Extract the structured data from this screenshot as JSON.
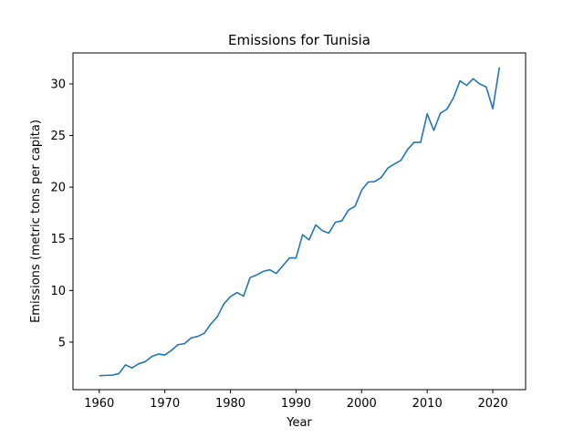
{
  "chart_data": {
    "type": "line",
    "title": "Emissions for Tunisia",
    "xlabel": "Year",
    "ylabel": "Emissions (metric tons per capita)",
    "xlim": [
      1956,
      2025
    ],
    "ylim": [
      0.4,
      33.0
    ],
    "xticks": [
      1960,
      1970,
      1980,
      1990,
      2000,
      2010,
      2020
    ],
    "yticks": [
      5,
      10,
      15,
      20,
      25,
      30
    ],
    "grid": false,
    "series": [
      {
        "name": "Tunisia",
        "color": "#1f77b4",
        "x": [
          1960,
          1961,
          1962,
          1963,
          1964,
          1965,
          1966,
          1967,
          1968,
          1969,
          1970,
          1971,
          1972,
          1973,
          1974,
          1975,
          1976,
          1977,
          1978,
          1979,
          1980,
          1981,
          1982,
          1983,
          1984,
          1985,
          1986,
          1987,
          1988,
          1989,
          1990,
          1991,
          1992,
          1993,
          1994,
          1995,
          1996,
          1997,
          1998,
          1999,
          2000,
          2001,
          2002,
          2003,
          2004,
          2005,
          2006,
          2007,
          2008,
          2009,
          2010,
          2011,
          2012,
          2013,
          2014,
          2015,
          2016,
          2017,
          2018,
          2019,
          2020,
          2021
        ],
        "values": [
          1.75,
          1.78,
          1.8,
          1.95,
          2.8,
          2.5,
          2.9,
          3.1,
          3.6,
          3.85,
          3.75,
          4.2,
          4.75,
          4.85,
          5.4,
          5.55,
          5.85,
          6.75,
          7.45,
          8.7,
          9.4,
          9.8,
          9.45,
          11.25,
          11.5,
          11.85,
          12.0,
          11.65,
          12.4,
          13.15,
          13.15,
          15.4,
          14.9,
          16.35,
          15.8,
          15.55,
          16.6,
          16.75,
          17.8,
          18.15,
          19.7,
          20.5,
          20.55,
          20.95,
          21.85,
          22.25,
          22.6,
          23.65,
          24.35,
          24.35,
          27.1,
          25.5,
          27.15,
          27.55,
          28.65,
          30.3,
          29.85,
          30.5,
          30.0,
          29.7,
          27.6,
          31.6
        ]
      }
    ]
  }
}
